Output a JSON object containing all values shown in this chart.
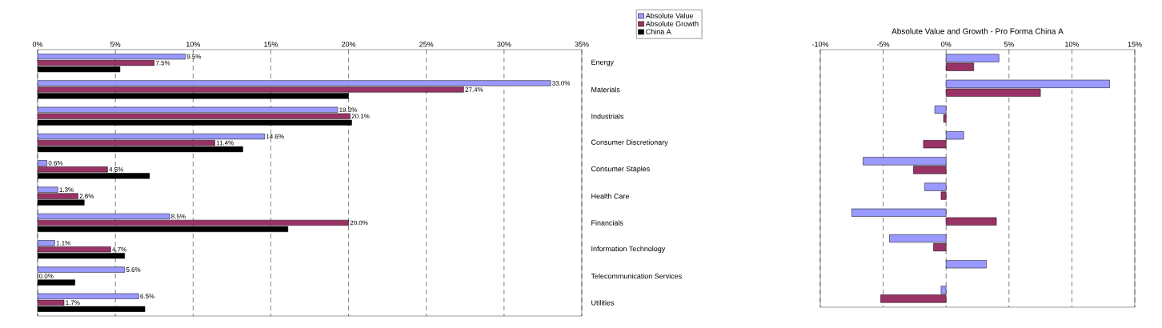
{
  "chart_data": [
    {
      "type": "bar",
      "orientation": "horizontal",
      "categories": [
        "Energy",
        "Materials",
        "Industrials",
        "Consumer Discretionary",
        "Consumer Staples",
        "Health Care",
        "Financials",
        "Information Technology",
        "Telecommunication Services",
        "Utilities"
      ],
      "series": [
        {
          "name": "Absolute Value",
          "color": "#9999ff",
          "values": [
            9.5,
            33.0,
            19.3,
            14.6,
            0.6,
            1.3,
            8.5,
            1.1,
            5.6,
            6.5
          ],
          "value_labels": [
            "9.5%",
            "33.0%",
            "19.3%",
            "14.6%",
            "0.6%",
            "1.3%",
            "8.5%",
            "1.1%",
            "5.6%",
            "6.5%"
          ]
        },
        {
          "name": "Absolute Growth",
          "color": "#993366",
          "values": [
            7.5,
            27.4,
            20.1,
            11.4,
            4.5,
            2.6,
            20.0,
            4.7,
            0.0,
            1.7
          ],
          "value_labels": [
            "7.5%",
            "27.4%",
            "20.1%",
            "11.4%",
            "4.5%",
            "2.6%",
            "20.0%",
            "4.7%",
            "0.0%",
            "1.7%"
          ]
        },
        {
          "name": "China A",
          "color": "#000000",
          "values": [
            5.3,
            20.0,
            20.2,
            13.2,
            7.2,
            3.0,
            16.1,
            5.6,
            2.4,
            6.9
          ]
        }
      ],
      "xlim": [
        0,
        35
      ],
      "xticks": [
        {
          "value": 0,
          "label": "0%"
        },
        {
          "value": 5,
          "label": "5%"
        },
        {
          "value": 10,
          "label": "10%"
        },
        {
          "value": 15,
          "label": "15%"
        },
        {
          "value": 20,
          "label": "20%"
        },
        {
          "value": 25,
          "label": "25%"
        },
        {
          "value": 30,
          "label": "30%"
        },
        {
          "value": 35,
          "label": "35%"
        }
      ],
      "grid": "x",
      "legend": "right"
    },
    {
      "type": "bar",
      "orientation": "horizontal",
      "title": "Absolute Value and Growth - Pro Forma China A",
      "categories": [
        null,
        null,
        null,
        null,
        null,
        null,
        null,
        null,
        null,
        null
      ],
      "series": [
        {
          "color": "#9999ff",
          "values": [
            4.2,
            13.0,
            -0.9,
            1.4,
            -6.6,
            -1.7,
            -7.5,
            -4.5,
            3.2,
            -0.4
          ]
        },
        {
          "color": "#993366",
          "values": [
            2.2,
            7.5,
            -0.2,
            -1.8,
            -2.6,
            -0.4,
            4.0,
            -1.0,
            null,
            -5.2
          ]
        }
      ],
      "tick_labels": "x",
      "xlim": [
        -10,
        15
      ],
      "xticks": [
        {
          "value": -10,
          "label": "-10%"
        },
        {
          "value": -5,
          "label": "-5%"
        },
        {
          "value": 0,
          "label": "0%"
        },
        {
          "value": 5,
          "label": "5%"
        },
        {
          "value": 10,
          "label": "10%"
        },
        {
          "value": 15,
          "label": "15%"
        }
      ],
      "grid": "x"
    }
  ]
}
